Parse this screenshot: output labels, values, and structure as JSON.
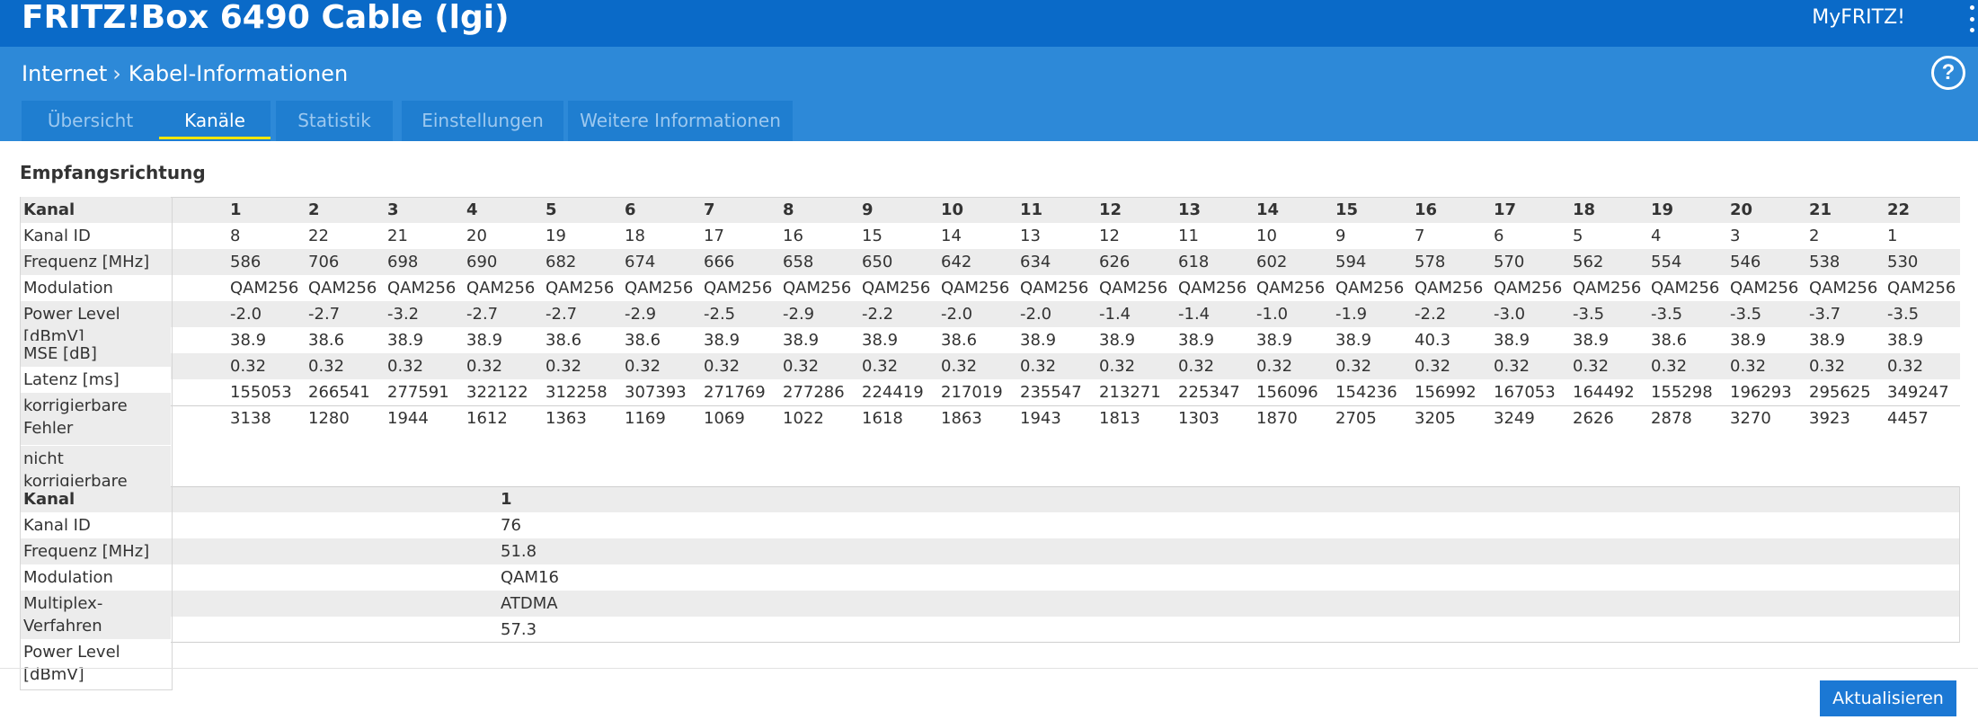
{
  "header": {
    "title": "FRITZ!Box 6490 Cable (lgi)",
    "myfritz": "MyFRITZ!"
  },
  "breadcrumb": {
    "parent": "Internet",
    "current": "Kabel-Informationen"
  },
  "help_label": "?",
  "tabs": [
    {
      "label": "Übersicht",
      "active": false
    },
    {
      "label": "Kanäle",
      "active": true
    },
    {
      "label": "Statistik",
      "active": false
    },
    {
      "label": "Einstellungen",
      "active": false
    },
    {
      "label": "Weitere Informationen",
      "active": false
    }
  ],
  "downstream": {
    "title": "Empfangsrichtung",
    "row_labels": [
      "Kanal",
      "Kanal ID",
      "Frequenz [MHz]",
      "Modulation",
      "Power Level [dBmV]",
      "MSE [dB]",
      "Latenz [ms]",
      "korrigierbare Fehler",
      "nicht korrigierbare Fehler"
    ],
    "kanal": [
      "1",
      "2",
      "3",
      "4",
      "5",
      "6",
      "7",
      "8",
      "9",
      "10",
      "11",
      "12",
      "13",
      "14",
      "15",
      "16",
      "17",
      "18",
      "19",
      "20",
      "21",
      "22"
    ],
    "rows": [
      [
        "8",
        "22",
        "21",
        "20",
        "19",
        "18",
        "17",
        "16",
        "15",
        "14",
        "13",
        "12",
        "11",
        "10",
        "9",
        "7",
        "6",
        "5",
        "4",
        "3",
        "2",
        "1"
      ],
      [
        "586",
        "706",
        "698",
        "690",
        "682",
        "674",
        "666",
        "658",
        "650",
        "642",
        "634",
        "626",
        "618",
        "602",
        "594",
        "578",
        "570",
        "562",
        "554",
        "546",
        "538",
        "530"
      ],
      [
        "QAM256",
        "QAM256",
        "QAM256",
        "QAM256",
        "QAM256",
        "QAM256",
        "QAM256",
        "QAM256",
        "QAM256",
        "QAM256",
        "QAM256",
        "QAM256",
        "QAM256",
        "QAM256",
        "QAM256",
        "QAM256",
        "QAM256",
        "QAM256",
        "QAM256",
        "QAM256",
        "QAM256",
        "QAM256"
      ],
      [
        "-2.0",
        "-2.7",
        "-3.2",
        "-2.7",
        "-2.7",
        "-2.9",
        "-2.5",
        "-2.9",
        "-2.2",
        "-2.0",
        "-2.0",
        "-1.4",
        "-1.4",
        "-1.0",
        "-1.9",
        "-2.2",
        "-3.0",
        "-3.5",
        "-3.5",
        "-3.5",
        "-3.7",
        "-3.5"
      ],
      [
        "38.9",
        "38.6",
        "38.9",
        "38.9",
        "38.6",
        "38.6",
        "38.9",
        "38.9",
        "38.9",
        "38.6",
        "38.9",
        "38.9",
        "38.9",
        "38.9",
        "38.9",
        "40.3",
        "38.9",
        "38.9",
        "38.6",
        "38.9",
        "38.9",
        "38.9"
      ],
      [
        "0.32",
        "0.32",
        "0.32",
        "0.32",
        "0.32",
        "0.32",
        "0.32",
        "0.32",
        "0.32",
        "0.32",
        "0.32",
        "0.32",
        "0.32",
        "0.32",
        "0.32",
        "0.32",
        "0.32",
        "0.32",
        "0.32",
        "0.32",
        "0.32",
        "0.32"
      ],
      [
        "155053",
        "266541",
        "277591",
        "322122",
        "312258",
        "307393",
        "271769",
        "277286",
        "224419",
        "217019",
        "235547",
        "213271",
        "225347",
        "156096",
        "154236",
        "156992",
        "167053",
        "164492",
        "155298",
        "196293",
        "295625",
        "349247"
      ],
      [
        "3138",
        "1280",
        "1944",
        "1612",
        "1363",
        "1169",
        "1069",
        "1022",
        "1618",
        "1863",
        "1943",
        "1813",
        "1303",
        "1870",
        "2705",
        "3205",
        "3249",
        "2626",
        "2878",
        "3270",
        "3923",
        "4457"
      ]
    ]
  },
  "upstream": {
    "row_labels": [
      "Kanal",
      "Kanal ID",
      "Frequenz [MHz]",
      "Modulation",
      "Multiplex-Verfahren",
      "Power Level [dBmV]"
    ],
    "kanal": "1",
    "values": [
      "76",
      "51.8",
      "QAM16",
      "ATDMA",
      "57.3"
    ]
  },
  "refresh_button": "Aktualisieren"
}
